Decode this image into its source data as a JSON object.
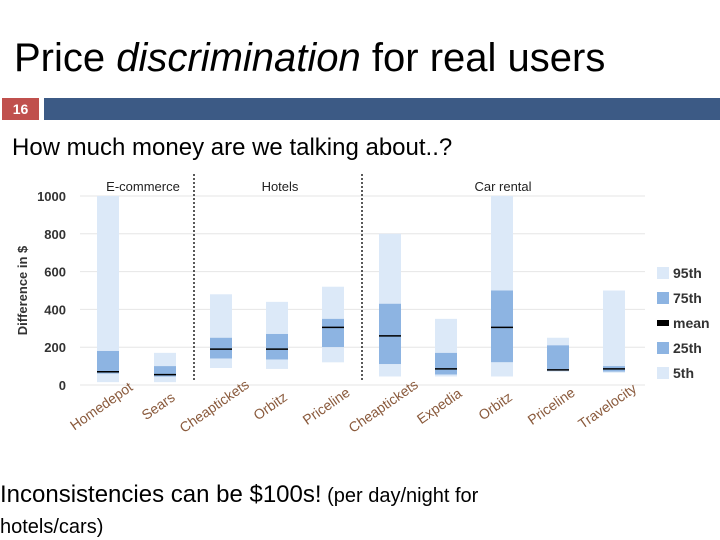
{
  "slide": {
    "title_plain": "Price ",
    "title_emph": "discrimination",
    "title_rest": " for real users",
    "number": "16",
    "subtitle": "How much money are we talking about..?",
    "footer_main": "Inconsistencies can be $100s!",
    "footer_note_1": "  (per day/night for",
    "footer_note_2": "hotels/cars)"
  },
  "colors": {
    "accent_red": "#c0504d",
    "accent_blue": "#3c5a85",
    "p95": "#dce9f8",
    "p75": "#8db4e2",
    "mean": "#000000",
    "p25": "#8db4e2",
    "p5": "#dce9f8"
  },
  "chart_data": {
    "type": "box",
    "ylabel": "Difference in $",
    "ylim": [
      0,
      1000
    ],
    "yticks": [
      "0",
      "200",
      "400",
      "600",
      "800",
      "1000"
    ],
    "groups": [
      {
        "label": "E-commerce",
        "sites": [
          "Homedepot",
          "Sears"
        ]
      },
      {
        "label": "Hotels",
        "sites": [
          "Cheaptickets",
          "Orbitz",
          "Priceline"
        ]
      },
      {
        "label": "Car rental",
        "sites": [
          "Cheaptickets",
          "Expedia",
          "Orbitz",
          "Priceline",
          "Travelocity"
        ]
      }
    ],
    "categories": [
      "Homedepot",
      "Sears",
      "Cheaptickets",
      "Orbitz",
      "Priceline",
      "Cheaptickets",
      "Expedia",
      "Orbitz",
      "Priceline",
      "Travelocity"
    ],
    "series": [
      {
        "name": "95th",
        "values": [
          1000,
          170,
          480,
          440,
          520,
          800,
          350,
          1000,
          250,
          500
        ]
      },
      {
        "name": "75th",
        "values": [
          180,
          100,
          250,
          270,
          350,
          430,
          170,
          500,
          210,
          100
        ]
      },
      {
        "name": "mean",
        "values": [
          70,
          55,
          190,
          190,
          305,
          260,
          85,
          305,
          80,
          85
        ]
      },
      {
        "name": "25th",
        "values": [
          60,
          45,
          140,
          135,
          200,
          110,
          55,
          120,
          75,
          70
        ]
      },
      {
        "name": "5th",
        "values": [
          15,
          15,
          90,
          85,
          120,
          45,
          45,
          45,
          70,
          65
        ]
      }
    ],
    "legend": [
      "95th",
      "75th",
      "mean",
      "25th",
      "5th"
    ],
    "legend_position": "right",
    "grid": true
  }
}
